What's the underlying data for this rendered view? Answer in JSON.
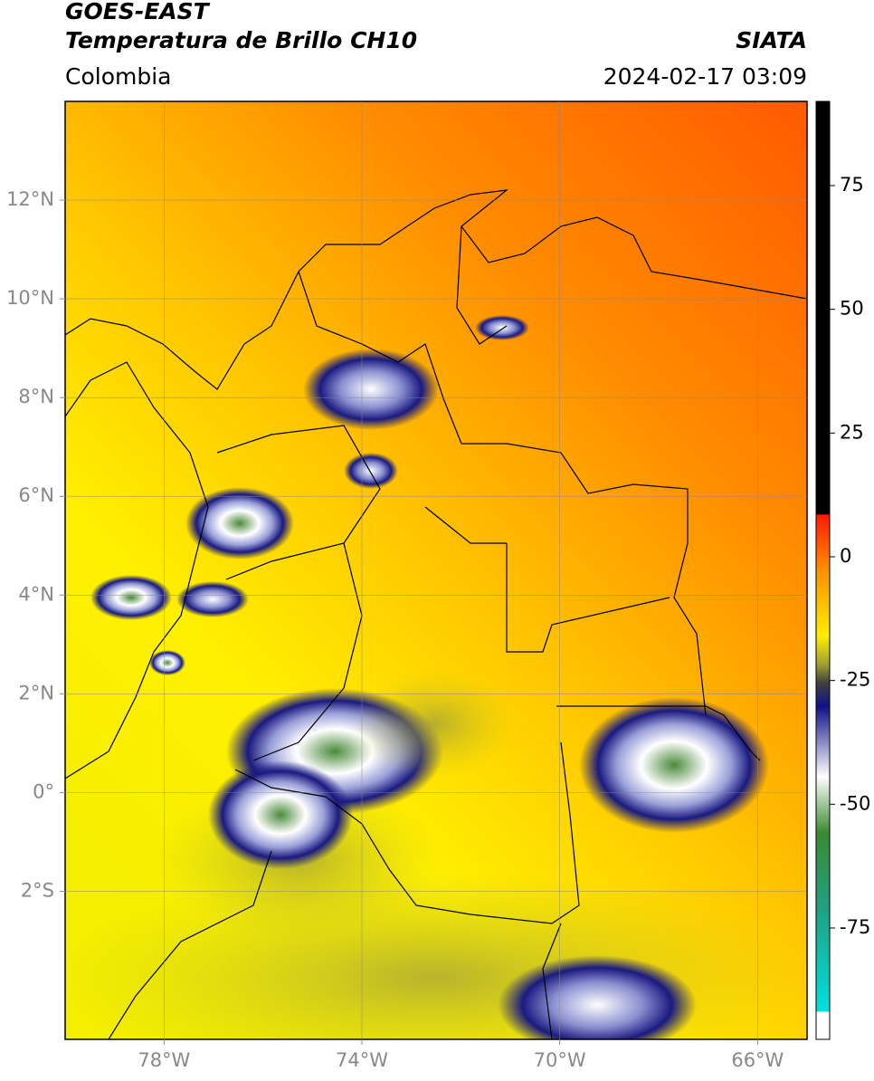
{
  "header": {
    "title": "GOES-EAST",
    "subtitle": "Temperatura de Brillo CH10",
    "region": "Colombia",
    "source": "SIATA",
    "datetime": "2024-02-17 03:09"
  },
  "map": {
    "xlim": [
      -80,
      -65
    ],
    "ylim": [
      -5,
      14
    ],
    "xticks": [
      {
        "value": -78,
        "label": "78°W"
      },
      {
        "value": -74,
        "label": "74°W"
      },
      {
        "value": -70,
        "label": "70°W"
      },
      {
        "value": -66,
        "label": "66°W"
      }
    ],
    "yticks": [
      {
        "value": 12,
        "label": "12°N"
      },
      {
        "value": 10,
        "label": "10°N"
      },
      {
        "value": 8,
        "label": "8°N"
      },
      {
        "value": 6,
        "label": "6°N"
      },
      {
        "value": 4,
        "label": "4°N"
      },
      {
        "value": 2,
        "label": "2°N"
      },
      {
        "value": 0,
        "label": "0°"
      },
      {
        "value": -2,
        "label": "2°S"
      }
    ],
    "grid": true
  },
  "colorbar": {
    "lim": [
      -97.5,
      92
    ],
    "ticks": [
      75,
      50,
      25,
      0,
      -25,
      -50,
      -75
    ]
  }
}
